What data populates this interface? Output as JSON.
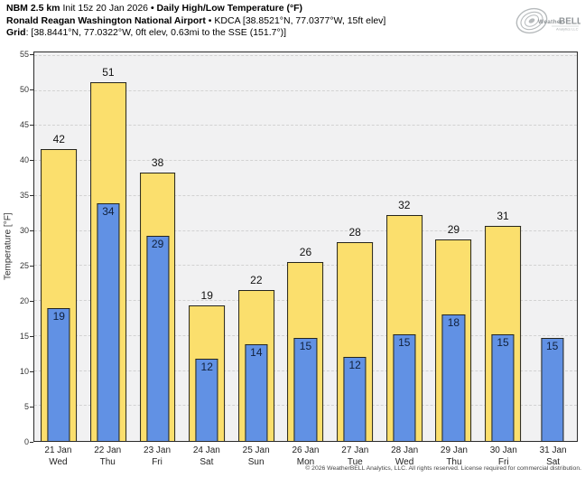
{
  "header": {
    "line1_bold1": "NBM 2.5 km",
    "line1_regular": " Init 15z 20 Jan 2026 ",
    "line1_bold2": "• Daily High/Low Temperature (°F)",
    "line2_bold": "Ronald Reagan Washington National Airport",
    "line2_regular": " • KDCA [38.8521°N, 77.0377°W, 15ft elev]",
    "line3_bold": "Grid",
    "line3_regular": ": [38.8441°N, 77.0322°W, 0ft elev, 0.63mi to the SSE (151.7°)]"
  },
  "logo": {
    "weather": "Weather",
    "bell": "BELL",
    "sub": "Analytics LLC"
  },
  "footer": {
    "copyright": "© 2026 WeatherBELL Analytics, LLC. All rights reserved. License required for commercial distribution."
  },
  "chart_data": {
    "type": "bar",
    "title": "NBM 2.5 km Daily High/Low Temperature (°F) — KDCA Ronald Reagan Washington National Airport",
    "xlabel": "",
    "ylabel": "Temperature [°F]",
    "ylim": [
      0,
      55.5
    ],
    "yticks": [
      0,
      5,
      10,
      15,
      20,
      25,
      30,
      35,
      40,
      45,
      50,
      55
    ],
    "grid": "horizontal-dashed",
    "legend_position": "none",
    "categories": [
      {
        "date": "21 Jan",
        "day": "Wed"
      },
      {
        "date": "22 Jan",
        "day": "Thu"
      },
      {
        "date": "23 Jan",
        "day": "Fri"
      },
      {
        "date": "24 Jan",
        "day": "Sat"
      },
      {
        "date": "25 Jan",
        "day": "Sun"
      },
      {
        "date": "26 Jan",
        "day": "Mon"
      },
      {
        "date": "27 Jan",
        "day": "Tue"
      },
      {
        "date": "28 Jan",
        "day": "Wed"
      },
      {
        "date": "29 Jan",
        "day": "Thu"
      },
      {
        "date": "30 Jan",
        "day": "Fri"
      },
      {
        "date": "31 Jan",
        "day": "Sat"
      }
    ],
    "series": [
      {
        "name": "Daily High",
        "color": "#FBDF6D",
        "values": [
          41.7,
          51.3,
          38.3,
          19.4,
          21.6,
          25.6,
          28.4,
          32.3,
          28.8,
          30.7,
          null
        ],
        "labels": [
          "42",
          "51",
          "38",
          "19",
          "22",
          "26",
          "28",
          "32",
          "29",
          "31",
          ""
        ]
      },
      {
        "name": "Daily Low",
        "color": "#6191E4",
        "values": [
          19.0,
          34.0,
          29.3,
          11.7,
          13.8,
          14.7,
          12.0,
          15.2,
          18.1,
          15.2,
          14.7
        ],
        "labels": [
          "19",
          "34",
          "29",
          "12",
          "14",
          "15",
          "12",
          "15",
          "18",
          "15",
          "15"
        ]
      }
    ]
  },
  "colors": {
    "high_bar": "#FBDF6D",
    "low_bar": "#6191E4",
    "bar_border": "#25251d",
    "plot_bg": "#f1f1f2",
    "gridline": "#d2d2d2",
    "axis": "#2b2b2b",
    "logo_grey": "#9aa0a3"
  }
}
